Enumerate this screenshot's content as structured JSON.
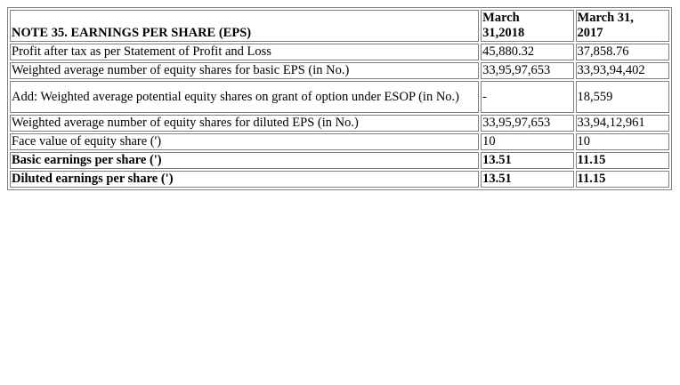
{
  "table": {
    "title": "NOTE 35. EARNINGS PER SHARE (EPS)",
    "columns": [
      "March 31,2018",
      "March 31, 2017"
    ],
    "header_lines": [
      [
        "March",
        "31,2018"
      ],
      [
        "March 31,",
        "2017"
      ]
    ],
    "rows": [
      {
        "label": "Profit after tax as per Statement of Profit and Loss",
        "v2018": "45,880.32",
        "v2017": "37,858.76",
        "bold": false
      },
      {
        "label": "Weighted average number of equity shares for basic EPS (in No.)",
        "v2018": "33,95,97,653",
        "v2017": "33,93,94,402",
        "bold": false
      },
      {
        "label": "Add: Weighted average potential equity shares on grant of option under ESOP (in No.)",
        "v2018": "-",
        "v2017": "18,559",
        "bold": false
      },
      {
        "label": "Weighted average number of equity shares for diluted EPS (in No.)",
        "v2018": "33,95,97,653",
        "v2017": "33,94,12,961",
        "bold": false
      },
      {
        "label": "Face value of equity share (')",
        "v2018": "10",
        "v2017": "10",
        "bold": false
      },
      {
        "label": "Basic earnings per share (')",
        "v2018": "13.51",
        "v2017": "11.15",
        "bold": true
      },
      {
        "label": "Diluted earnings per share (')",
        "v2018": "13.51",
        "v2017": "11.15",
        "bold": true
      }
    ]
  }
}
